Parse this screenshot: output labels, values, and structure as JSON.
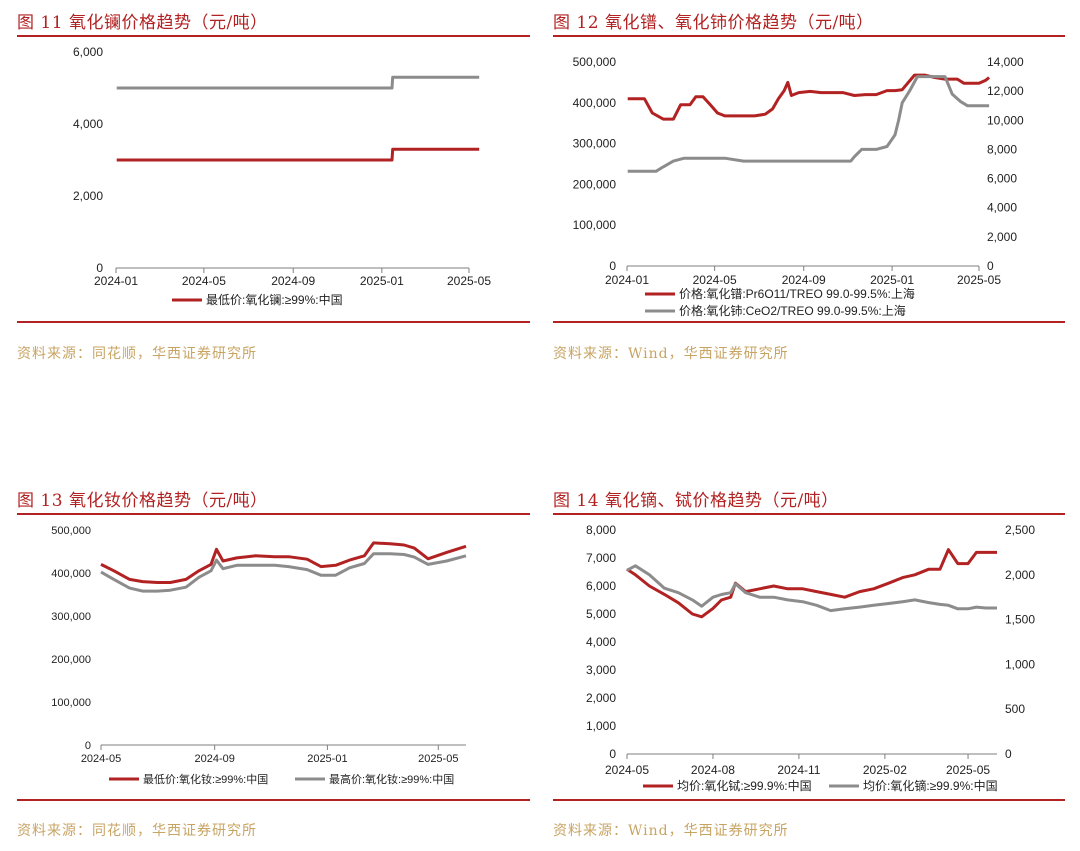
{
  "panels": [
    {
      "title": "图 11 氧化镧价格趋势（元/吨）",
      "source": "资料来源：同花顺，华西证券研究所"
    },
    {
      "title": "图 12 氧化镨、氧化铈价格趋势（元/吨）",
      "source": "资料来源：Wind，华西证券研究所"
    },
    {
      "title": "图 13 氧化钕价格趋势（元/吨）",
      "source": "资料来源：同花顺，华西证券研究所"
    },
    {
      "title": "图 14 氧化镝、铽价格趋势（元/吨）",
      "source": "资料来源：Wind，华西证券研究所"
    }
  ],
  "colors": {
    "red": "#b22222",
    "gray": "#8c8c8c",
    "axis": "#7f7f7f"
  },
  "chart_data": [
    {
      "type": "line",
      "title": "",
      "x_ticks": [
        "2024-01",
        "2024-05",
        "2024-09",
        "2025-01",
        "2025-05"
      ],
      "x_range": [
        "2024-01",
        "2025-05"
      ],
      "y_ticks": [
        "0",
        "2,000",
        "4,000",
        "6,000"
      ],
      "ylim": [
        0,
        6000
      ],
      "legend_position": "bottom",
      "series": [
        {
          "name": "最低价:氧化镧:≥99%:中国",
          "color": "#b22222",
          "x": [
            "2024-01-02",
            "2025-01-15",
            "2025-01-16",
            "2025-05-15"
          ],
          "y": [
            3000,
            3000,
            3300,
            3300
          ]
        },
        {
          "name": "",
          "color": "#8c8c8c",
          "x": [
            "2024-01-02",
            "2025-01-15",
            "2025-01-16",
            "2025-05-15"
          ],
          "y": [
            5000,
            5000,
            5300,
            5300
          ]
        }
      ]
    },
    {
      "type": "line",
      "title": "",
      "x_ticks": [
        "2024-01",
        "2024-05",
        "2024-09",
        "2025-01",
        "2025-05"
      ],
      "x_range": [
        "2024-01",
        "2025-05"
      ],
      "y_ticks": [
        "0",
        "100,000",
        "200,000",
        "300,000",
        "400,000",
        "500,000"
      ],
      "ylim": [
        0,
        500000
      ],
      "y2_ticks": [
        "0",
        "2,000",
        "4,000",
        "6,000",
        "8,000",
        "10,000",
        "12,000",
        "14,000"
      ],
      "y2lim": [
        0,
        14000
      ],
      "legend_position": "bottom",
      "series": [
        {
          "name": "价格:氧化镨:Pr6O11/TREO 99.0-99.5%:上海",
          "axis": "left",
          "color": "#b22222",
          "x": [
            "2024-01-02",
            "2024-01-25",
            "2024-02-05",
            "2024-02-20",
            "2024-03-05",
            "2024-03-15",
            "2024-03-28",
            "2024-04-05",
            "2024-04-15",
            "2024-04-25",
            "2024-05-05",
            "2024-05-15",
            "2024-05-25",
            "2024-06-10",
            "2024-06-25",
            "2024-07-10",
            "2024-07-20",
            "2024-07-28",
            "2024-08-05",
            "2024-08-10",
            "2024-08-15",
            "2024-08-25",
            "2024-09-10",
            "2024-09-25",
            "2024-10-10",
            "2024-10-25",
            "2024-11-10",
            "2024-11-25",
            "2024-12-10",
            "2024-12-25",
            "2025-01-05",
            "2025-01-15",
            "2025-02-01",
            "2025-02-15",
            "2025-03-01",
            "2025-03-15",
            "2025-04-01",
            "2025-04-10",
            "2025-04-20",
            "2025-05-01",
            "2025-05-10",
            "2025-05-15"
          ],
          "y": [
            410000,
            410000,
            375000,
            360000,
            360000,
            395000,
            395000,
            415000,
            415000,
            395000,
            375000,
            368000,
            368000,
            368000,
            368000,
            372000,
            385000,
            410000,
            430000,
            450000,
            418000,
            425000,
            428000,
            425000,
            425000,
            425000,
            418000,
            420000,
            420000,
            430000,
            430000,
            432000,
            468000,
            468000,
            462000,
            458000,
            458000,
            448000,
            448000,
            448000,
            455000,
            462000
          ]
        },
        {
          "name": "价格:氧化铈:CeO2/TREO 99.0-99.5%:上海",
          "axis": "right",
          "color": "#8c8c8c",
          "x": [
            "2024-01-02",
            "2024-02-10",
            "2024-02-20",
            "2024-03-05",
            "2024-03-20",
            "2024-04-10",
            "2024-05-15",
            "2024-06-10",
            "2024-07-10",
            "2024-08-10",
            "2024-09-10",
            "2024-10-10",
            "2024-11-05",
            "2024-11-10",
            "2024-11-20",
            "2024-12-10",
            "2024-12-25",
            "2025-01-05",
            "2025-01-10",
            "2025-01-15",
            "2025-01-25",
            "2025-02-05",
            "2025-02-15",
            "2025-03-01",
            "2025-03-15",
            "2025-03-25",
            "2025-04-05",
            "2025-04-15",
            "2025-05-15"
          ],
          "y": [
            6500,
            6500,
            6800,
            7200,
            7400,
            7400,
            7400,
            7200,
            7200,
            7200,
            7200,
            7200,
            7200,
            7500,
            8000,
            8000,
            8200,
            9000,
            10000,
            11200,
            12000,
            13000,
            13000,
            13000,
            13000,
            11800,
            11300,
            11000,
            11000
          ]
        }
      ]
    },
    {
      "type": "line",
      "title": "",
      "x_ticks": [
        "2024-05",
        "2024-09",
        "2025-01",
        "2025-05"
      ],
      "x_range": [
        "2024-05",
        "2025-05-31"
      ],
      "y_ticks": [
        "0",
        "100,000",
        "200,000",
        "300,000",
        "400,000",
        "500,000"
      ],
      "ylim": [
        0,
        500000
      ],
      "legend_position": "bottom",
      "series": [
        {
          "name": "最低价:氧化钕:≥99%:中国",
          "color": "#b22222",
          "x": [
            "2024-05-01",
            "2024-05-15",
            "2024-06-01",
            "2024-06-15",
            "2024-07-01",
            "2024-07-15",
            "2024-08-01",
            "2024-08-15",
            "2024-08-28",
            "2024-09-03",
            "2024-09-10",
            "2024-09-25",
            "2024-10-15",
            "2024-11-05",
            "2024-11-20",
            "2024-12-10",
            "2024-12-25",
            "2025-01-10",
            "2025-01-25",
            "2025-02-10",
            "2025-02-20",
            "2025-03-10",
            "2025-03-25",
            "2025-04-05",
            "2025-04-20",
            "2025-05-10",
            "2025-05-31"
          ],
          "y": [
            420000,
            405000,
            385000,
            380000,
            378000,
            378000,
            385000,
            405000,
            420000,
            455000,
            428000,
            435000,
            440000,
            438000,
            438000,
            432000,
            415000,
            418000,
            430000,
            440000,
            470000,
            468000,
            465000,
            458000,
            433000,
            448000,
            462000
          ]
        },
        {
          "name": "最高价:氧化钕:≥99%:中国",
          "color": "#8c8c8c",
          "x": [
            "2024-05-01",
            "2024-05-15",
            "2024-06-01",
            "2024-06-15",
            "2024-07-01",
            "2024-07-15",
            "2024-08-01",
            "2024-08-15",
            "2024-08-28",
            "2024-09-03",
            "2024-09-10",
            "2024-09-25",
            "2024-10-15",
            "2024-11-05",
            "2024-11-20",
            "2024-12-10",
            "2024-12-25",
            "2025-01-10",
            "2025-01-25",
            "2025-02-10",
            "2025-02-20",
            "2025-03-10",
            "2025-03-25",
            "2025-04-05",
            "2025-04-20",
            "2025-05-10",
            "2025-05-31"
          ],
          "y": [
            402000,
            385000,
            365000,
            358000,
            358000,
            360000,
            367000,
            390000,
            405000,
            430000,
            410000,
            418000,
            418000,
            418000,
            415000,
            408000,
            395000,
            395000,
            412000,
            422000,
            445000,
            445000,
            443000,
            437000,
            420000,
            428000,
            440000
          ]
        }
      ]
    },
    {
      "type": "line",
      "title": "",
      "x_ticks": [
        "2024-05",
        "2024-08",
        "2024-11",
        "2025-02",
        "2025-05"
      ],
      "x_range": [
        "2024-05",
        "2025-06"
      ],
      "y_ticks": [
        "0",
        "1,000",
        "2,000",
        "3,000",
        "4,000",
        "5,000",
        "6,000",
        "7,000",
        "8,000"
      ],
      "ylim": [
        0,
        8000
      ],
      "y2_ticks": [
        "0",
        "500",
        "1,000",
        "1,500",
        "2,000",
        "2,500"
      ],
      "y2lim": [
        0,
        2500
      ],
      "legend_position": "bottom",
      "series": [
        {
          "name": "均价:氧化铽:≥99.9%:中国",
          "axis": "left",
          "color": "#b22222",
          "x": [
            "2024-05-01",
            "2024-05-10",
            "2024-05-25",
            "2024-06-10",
            "2024-06-25",
            "2024-07-10",
            "2024-07-20",
            "2024-08-01",
            "2024-08-10",
            "2024-08-20",
            "2024-08-25",
            "2024-09-05",
            "2024-09-20",
            "2024-10-05",
            "2024-10-20",
            "2024-11-05",
            "2024-11-20",
            "2024-12-05",
            "2024-12-20",
            "2025-01-05",
            "2025-01-20",
            "2025-02-05",
            "2025-02-20",
            "2025-03-05",
            "2025-03-20",
            "2025-04-01",
            "2025-04-10",
            "2025-04-20",
            "2025-05-01",
            "2025-05-10",
            "2025-05-20",
            "2025-06-01"
          ],
          "y": [
            6600,
            6400,
            6000,
            5700,
            5400,
            5000,
            4900,
            5200,
            5500,
            5600,
            6100,
            5800,
            5900,
            6000,
            5900,
            5900,
            5800,
            5700,
            5600,
            5800,
            5900,
            6100,
            6300,
            6400,
            6600,
            6600,
            7300,
            6800,
            6800,
            7200,
            7200,
            7200
          ]
        },
        {
          "name": "均价:氧化镝:≥99.9%:中国",
          "axis": "right",
          "color": "#8c8c8c",
          "x": [
            "2024-05-01",
            "2024-05-10",
            "2024-05-25",
            "2024-06-10",
            "2024-06-25",
            "2024-07-10",
            "2024-07-20",
            "2024-08-01",
            "2024-08-10",
            "2024-08-20",
            "2024-08-25",
            "2024-09-05",
            "2024-09-20",
            "2024-10-05",
            "2024-10-20",
            "2024-11-05",
            "2024-11-20",
            "2024-12-05",
            "2024-12-20",
            "2025-01-05",
            "2025-01-20",
            "2025-02-05",
            "2025-02-20",
            "2025-03-05",
            "2025-03-20",
            "2025-04-01",
            "2025-04-10",
            "2025-04-20",
            "2025-05-01",
            "2025-05-10",
            "2025-05-20",
            "2025-06-01"
          ],
          "y": [
            2050,
            2100,
            2000,
            1850,
            1800,
            1720,
            1650,
            1750,
            1780,
            1800,
            1900,
            1800,
            1750,
            1750,
            1720,
            1700,
            1660,
            1600,
            1620,
            1640,
            1660,
            1680,
            1700,
            1720,
            1690,
            1670,
            1660,
            1620,
            1620,
            1640,
            1630,
            1630
          ]
        }
      ]
    }
  ]
}
